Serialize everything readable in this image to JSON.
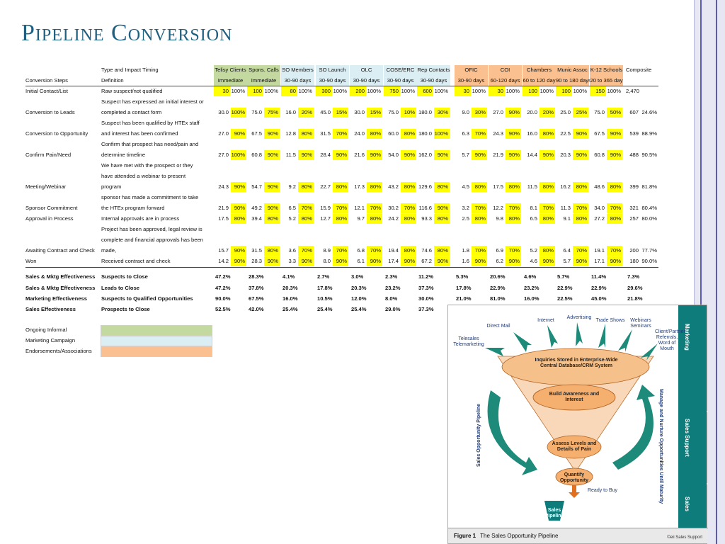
{
  "page": {
    "title": "Pipeline Conversion"
  },
  "sheet": {
    "type_header": "Type and Impact Timing",
    "steps_header": "Conversion Steps",
    "definition_header": "Definition",
    "groups": [
      {
        "name": "Telisy Clients",
        "timing": "Immediate",
        "color": "#c4d9a0"
      },
      {
        "name": "Spons. Calls",
        "timing": "Immediate",
        "color": "#c4d9a0"
      },
      {
        "name": "SO Members",
        "timing": "30-90 days",
        "color": "#dbeef3"
      },
      {
        "name": "SO Launch",
        "timing": "30-90 days",
        "color": "#dbeef3"
      },
      {
        "name": "OLC",
        "timing": "30-90 days",
        "color": "#dbeef3"
      },
      {
        "name": "COSE/ERC",
        "timing": "30-90 days",
        "color": "#dbeef3"
      },
      {
        "name": "Rep Contacts",
        "timing": "30-90 days",
        "color": "#dbeef3"
      },
      {
        "name": "OFIC",
        "timing": "30-90 days",
        "color": "#fac08f"
      },
      {
        "name": "COI",
        "timing": "60-120 days",
        "color": "#fac08f"
      },
      {
        "name": "Chambers",
        "timing": "60 to 120 day",
        "color": "#fac08f"
      },
      {
        "name": "Munic Assoc",
        "timing": "90 to 180 days",
        "color": "#fac08f"
      },
      {
        "name": "K-12 Schools",
        "timing": "20 to 365 day",
        "color": "#fac08f"
      }
    ],
    "composite_header": "Composite",
    "rows": [
      {
        "step": "Initial Contact/List",
        "def": [
          "Raw suspect/not qualified"
        ],
        "vals": [
          [
            "30",
            "100%"
          ],
          [
            "100",
            "100%"
          ],
          [
            "80",
            "100%"
          ],
          [
            "300",
            "100%"
          ],
          [
            "200",
            "100%"
          ],
          [
            "750",
            "100%"
          ],
          [
            "600",
            "100%"
          ],
          [
            "30",
            "100%"
          ],
          [
            "30",
            "100%"
          ],
          [
            "100",
            "100%"
          ],
          [
            "100",
            "100%"
          ],
          [
            "150",
            "100%"
          ]
        ],
        "comp": [
          "2,470",
          ""
        ]
      },
      {
        "step": "Conversion to Leads",
        "def": [
          "Suspect has expressed an initial interest or",
          "completed a contact form"
        ],
        "vals": [
          [
            "30.0",
            "100%"
          ],
          [
            "75.0",
            "75%"
          ],
          [
            "16.0",
            "20%"
          ],
          [
            "45.0",
            "15%"
          ],
          [
            "30.0",
            "15%"
          ],
          [
            "75.0",
            "10%"
          ],
          [
            "180.0",
            "30%"
          ],
          [
            "9.0",
            "30%"
          ],
          [
            "27.0",
            "90%"
          ],
          [
            "20.0",
            "20%"
          ],
          [
            "25.0",
            "25%"
          ],
          [
            "75.0",
            "50%"
          ]
        ],
        "comp": [
          "607",
          "24.6%"
        ]
      },
      {
        "step": "Conversion to Opportunity",
        "def": [
          "Suspect has been qualified by HTEx staff",
          "and interest has been confirmed"
        ],
        "vals": [
          [
            "27.0",
            "90%"
          ],
          [
            "67.5",
            "90%"
          ],
          [
            "12.8",
            "80%"
          ],
          [
            "31.5",
            "70%"
          ],
          [
            "24.0",
            "80%"
          ],
          [
            "60.0",
            "80%"
          ],
          [
            "180.0",
            "100%"
          ],
          [
            "6.3",
            "70%"
          ],
          [
            "24.3",
            "90%"
          ],
          [
            "16.0",
            "80%"
          ],
          [
            "22.5",
            "90%"
          ],
          [
            "67.5",
            "90%"
          ]
        ],
        "comp": [
          "539",
          "88.9%"
        ]
      },
      {
        "step": "Confirm Pain/Need",
        "def": [
          "Confirm that prospect has need/pain and",
          "determine timeline"
        ],
        "vals": [
          [
            "27.0",
            "100%"
          ],
          [
            "60.8",
            "90%"
          ],
          [
            "11.5",
            "90%"
          ],
          [
            "28.4",
            "90%"
          ],
          [
            "21.6",
            "90%"
          ],
          [
            "54.0",
            "90%"
          ],
          [
            "162.0",
            "90%"
          ],
          [
            "5.7",
            "90%"
          ],
          [
            "21.9",
            "90%"
          ],
          [
            "14.4",
            "90%"
          ],
          [
            "20.3",
            "90%"
          ],
          [
            "60.8",
            "90%"
          ]
        ],
        "comp": [
          "488",
          "90.5%"
        ]
      },
      {
        "step": "Meeting/Webinar",
        "def": [
          "We have met with the prospect or they",
          "have attended a webinar to present",
          "program"
        ],
        "vals": [
          [
            "24.3",
            "90%"
          ],
          [
            "54.7",
            "90%"
          ],
          [
            "9.2",
            "80%"
          ],
          [
            "22.7",
            "80%"
          ],
          [
            "17.3",
            "80%"
          ],
          [
            "43.2",
            "80%"
          ],
          [
            "129.6",
            "80%"
          ],
          [
            "4.5",
            "80%"
          ],
          [
            "17.5",
            "80%"
          ],
          [
            "11.5",
            "80%"
          ],
          [
            "16.2",
            "80%"
          ],
          [
            "48.6",
            "80%"
          ]
        ],
        "comp": [
          "399",
          "81.8%"
        ]
      },
      {
        "step": "Sponsor Commitment",
        "def": [
          "sponsor has made a commitment to take",
          "the HTEx program forward"
        ],
        "vals": [
          [
            "21.9",
            "90%"
          ],
          [
            "49.2",
            "90%"
          ],
          [
            "6.5",
            "70%"
          ],
          [
            "15.9",
            "70%"
          ],
          [
            "12.1",
            "70%"
          ],
          [
            "30.2",
            "70%"
          ],
          [
            "116.6",
            "90%"
          ],
          [
            "3.2",
            "70%"
          ],
          [
            "12.2",
            "70%"
          ],
          [
            "8.1",
            "70%"
          ],
          [
            "11.3",
            "70%"
          ],
          [
            "34.0",
            "70%"
          ]
        ],
        "comp": [
          "321",
          "80.4%"
        ]
      },
      {
        "step": "Approval in Process",
        "def": [
          "Internal approvals are in process"
        ],
        "vals": [
          [
            "17.5",
            "80%"
          ],
          [
            "39.4",
            "80%"
          ],
          [
            "5.2",
            "80%"
          ],
          [
            "12.7",
            "80%"
          ],
          [
            "9.7",
            "80%"
          ],
          [
            "24.2",
            "80%"
          ],
          [
            "93.3",
            "80%"
          ],
          [
            "2.5",
            "80%"
          ],
          [
            "9.8",
            "80%"
          ],
          [
            "6.5",
            "80%"
          ],
          [
            "9.1",
            "80%"
          ],
          [
            "27.2",
            "80%"
          ]
        ],
        "comp": [
          "257",
          "80.0%"
        ]
      },
      {
        "step": "Awaiting Contract and Check",
        "def": [
          "Project has been approved, legal review is",
          "complete and financial approvals has been",
          "made,"
        ],
        "vals": [
          [
            "15.7",
            "90%"
          ],
          [
            "31.5",
            "80%"
          ],
          [
            "3.6",
            "70%"
          ],
          [
            "8.9",
            "70%"
          ],
          [
            "6.8",
            "70%"
          ],
          [
            "19.4",
            "80%"
          ],
          [
            "74.6",
            "80%"
          ],
          [
            "1.8",
            "70%"
          ],
          [
            "6.9",
            "70%"
          ],
          [
            "5.2",
            "80%"
          ],
          [
            "6.4",
            "70%"
          ],
          [
            "19.1",
            "70%"
          ]
        ],
        "comp": [
          "200",
          "77.7%"
        ]
      },
      {
        "step": "Won",
        "def": [
          "Received contract and check"
        ],
        "vals": [
          [
            "14.2",
            "90%"
          ],
          [
            "28.3",
            "90%"
          ],
          [
            "3.3",
            "90%"
          ],
          [
            "8.0",
            "90%"
          ],
          [
            "6.1",
            "90%"
          ],
          [
            "17.4",
            "90%"
          ],
          [
            "67.2",
            "90%"
          ],
          [
            "1.6",
            "90%"
          ],
          [
            "6.2",
            "90%"
          ],
          [
            "4.6",
            "90%"
          ],
          [
            "5.7",
            "90%"
          ],
          [
            "17.1",
            "90%"
          ]
        ],
        "comp": [
          "180",
          "90.0%"
        ]
      }
    ],
    "effectiveness": [
      {
        "label": "Sales & Mktg Effectiveness",
        "def": "Suspects to Close",
        "vals": [
          "47.2%",
          "28.3%",
          "4.1%",
          "2.7%",
          "3.0%",
          "2.3%",
          "11.2%",
          "5.3%",
          "20.6%",
          "4.6%",
          "5.7%",
          "11.4%"
        ],
        "comp": "7.3%"
      },
      {
        "label": "Sales & Mktg Effectiveness",
        "def": "Leads to Close",
        "vals": [
          "47.2%",
          "37.8%",
          "20.3%",
          "17.8%",
          "20.3%",
          "23.2%",
          "37.3%",
          "17.8%",
          "22.9%",
          "23.2%",
          "22.9%",
          "22.9%"
        ],
        "comp": "29.6%"
      },
      {
        "label": "Marketing Effectiveness",
        "def": "Suspects to Qualified Opportunities",
        "vals": [
          "90.0%",
          "67.5%",
          "16.0%",
          "10.5%",
          "12.0%",
          "8.0%",
          "30.0%",
          "21.0%",
          "81.0%",
          "16.0%",
          "22.5%",
          "45.0%"
        ],
        "comp": "21.8%"
      },
      {
        "label": "Sales Effectiveness",
        "def": "Prospects to Close",
        "vals": [
          "52.5%",
          "42.0%",
          "25.4%",
          "25.4%",
          "25.4%",
          "29.0%",
          "37.3%"
        ],
        "comp": ""
      }
    ],
    "legend": [
      {
        "label": "Ongoing Informal",
        "color": "#c4d9a0"
      },
      {
        "label": "Marketing Campaign",
        "color": "#dbeef3"
      },
      {
        "label": "Endorsements/Associations",
        "color": "#fac08f"
      }
    ]
  },
  "figure": {
    "sources": [
      "Telesales Telemarketing",
      "Direct Mail",
      "Internet",
      "Advertising",
      "Trade Shows",
      "Webinars Seminars",
      "Client/Partner Referrals, Word of Mouth"
    ],
    "stages": [
      "Inquiries Stored in Enterprise-Wide Central Database/CRM System",
      "Build Awareness and Interest",
      "Assess Levels and Details of Pain",
      "Quantify Opportunity"
    ],
    "ready": "Ready to Buy",
    "pipeline": "Sales Pipeline",
    "left_label": "Sales Opportunity Pipeline",
    "right_label": "Manage and Nurture Opportunities Until Maturity",
    "side_labels": [
      "Marketing",
      "Sales Support",
      "Sales"
    ],
    "caption_num": "Figure 1",
    "caption": "The Sales Opportunity Pipeline",
    "credit": "©eii Sales Support"
  }
}
